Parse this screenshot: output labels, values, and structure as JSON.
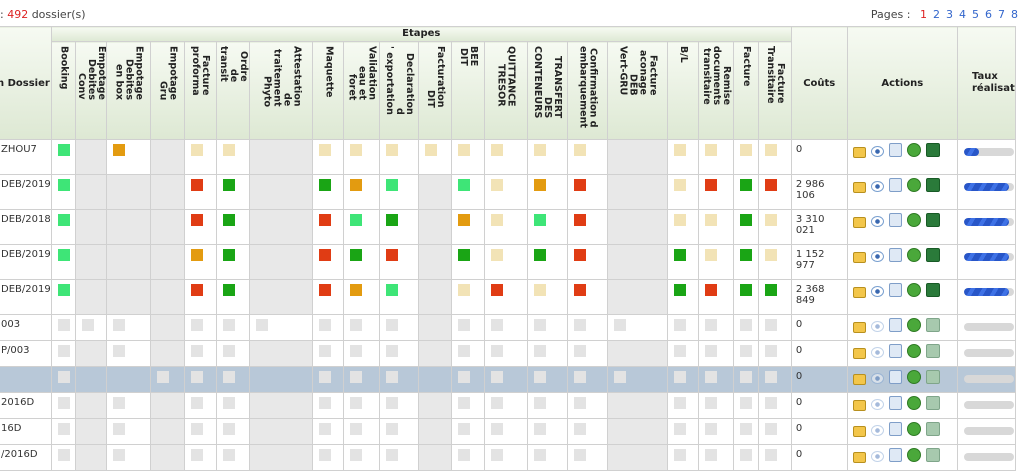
{
  "header": {
    "count_prefix": ": ",
    "count": "492",
    "count_suffix": " dossier(s)"
  },
  "pager": {
    "label": "Pages :",
    "pages": [
      "1",
      "2",
      "3",
      "4",
      "5",
      "6",
      "7",
      "8"
    ],
    "current": "1"
  },
  "table": {
    "col_dossier": "n Dossier",
    "group_etapes": "Etapes",
    "col_couts": "Coûts",
    "col_actions": "Actions",
    "col_taux": "Taux\nréalisat",
    "stages": [
      "Booking",
      "Empotage\nDebites\nConv",
      "Empotage\nDebites\nen box",
      "Empotage\nGru",
      "Facture\nproforma",
      "Ordre\nde\ntransit",
      "Attestation\nde\ntraitement\nPhyto",
      "Maquette",
      "Validation\neau et\nforet",
      "Declaration\nd\n' exportation",
      "Facturation\nDIT",
      "BEE\nDIT",
      "QUITTANCE\nTRESOR",
      "TRANSFERT\nDES\nCONTENEURS",
      "Confirmation d\nembarquement",
      "Facture\naconage\nDEB\nVert-GRU",
      "B/L",
      "Remise\ndocuments\ntransitaire",
      "Facture",
      "Facture\nTransitaire"
    ],
    "rows": [
      {
        "dossier": "ZHOU7",
        "cost": "0",
        "sel": false,
        "cells": [
          "lg",
          "x",
          "o",
          "x",
          "b",
          "b",
          "x",
          "b",
          "b",
          "b",
          "b",
          "b",
          "b",
          "b",
          "b",
          "x",
          "b",
          "b",
          "b",
          "b"
        ],
        "progress": 0.3,
        "dim": false
      },
      {
        "dossier": "DEB/2019",
        "cost": "2 986 106",
        "sel": false,
        "cells": [
          "lg",
          "x",
          "x",
          "x",
          "r",
          "dg",
          "x",
          "dg",
          "o",
          "lg",
          "x",
          "lg",
          "b",
          "o",
          "r",
          "x",
          "b",
          "r",
          "dg",
          "r"
        ],
        "progress": 0.9,
        "dim": false
      },
      {
        "dossier": "DEB/2018",
        "cost": "3 310 021",
        "sel": false,
        "cells": [
          "lg",
          "x",
          "x",
          "x",
          "r",
          "dg",
          "x",
          "r",
          "lg",
          "dg",
          "x",
          "o",
          "b",
          "lg",
          "r",
          "x",
          "b",
          "b",
          "dg",
          "b"
        ],
        "progress": 0.9,
        "dim": false
      },
      {
        "dossier": "DEB/2019",
        "cost": "1 152 977",
        "sel": false,
        "cells": [
          "lg",
          "x",
          "x",
          "x",
          "o",
          "dg",
          "x",
          "r",
          "dg",
          "r",
          "x",
          "dg",
          "b",
          "dg",
          "r",
          "x",
          "dg",
          "b",
          "dg",
          "b"
        ],
        "progress": 0.9,
        "dim": false
      },
      {
        "dossier": "DEB/2019",
        "cost": "2 368 849",
        "sel": false,
        "cells": [
          "lg",
          "x",
          "x",
          "x",
          "r",
          "dg",
          "x",
          "r",
          "o",
          "lg",
          "x",
          "b",
          "r",
          "b",
          "r",
          "x",
          "dg",
          "r",
          "dg",
          "dg"
        ],
        "progress": 0.9,
        "dim": false
      },
      {
        "dossier": "003",
        "cost": "0",
        "sel": false,
        "cells": [
          "gy",
          "gy",
          "gy",
          "x",
          "gy",
          "gy",
          "gy",
          "gy",
          "gy",
          "gy",
          "x",
          "gy",
          "gy",
          "gy",
          "gy",
          "gy",
          "gy",
          "gy",
          "gy",
          "gy"
        ],
        "progress": 0,
        "dim": true
      },
      {
        "dossier": "P/003",
        "cost": "0",
        "sel": false,
        "cells": [
          "gy",
          "x",
          "gy",
          "x",
          "gy",
          "gy",
          "x",
          "gy",
          "gy",
          "gy",
          "x",
          "gy",
          "gy",
          "gy",
          "gy",
          "x",
          "gy",
          "gy",
          "gy",
          "gy"
        ],
        "progress": 0,
        "dim": true
      },
      {
        "dossier": "",
        "cost": "0",
        "sel": true,
        "cells": [
          "gy",
          "x",
          "x",
          "gy",
          "gy",
          "gy",
          "x",
          "gy",
          "gy",
          "gy",
          "x",
          "gy",
          "gy",
          "gy",
          "gy",
          "gy",
          "gy",
          "gy",
          "gy",
          "gy"
        ],
        "progress": 0,
        "dim": true
      },
      {
        "dossier": "2016D",
        "cost": "0",
        "sel": false,
        "cells": [
          "gy",
          "x",
          "gy",
          "x",
          "gy",
          "gy",
          "x",
          "gy",
          "gy",
          "gy",
          "x",
          "gy",
          "gy",
          "gy",
          "gy",
          "x",
          "gy",
          "gy",
          "gy",
          "gy"
        ],
        "progress": 0,
        "dim": true
      },
      {
        "dossier": "16D",
        "cost": "0",
        "sel": false,
        "cells": [
          "gy",
          "x",
          "gy",
          "x",
          "gy",
          "gy",
          "x",
          "gy",
          "gy",
          "gy",
          "x",
          "gy",
          "gy",
          "gy",
          "gy",
          "x",
          "gy",
          "gy",
          "gy",
          "gy"
        ],
        "progress": 0,
        "dim": true
      },
      {
        "dossier": "/2016D",
        "cost": "0",
        "sel": false,
        "cells": [
          "gy",
          "x",
          "gy",
          "x",
          "gy",
          "gy",
          "x",
          "gy",
          "gy",
          "gy",
          "x",
          "gy",
          "gy",
          "gy",
          "gy",
          "x",
          "gy",
          "gy",
          "gy",
          "gy"
        ],
        "progress": 0,
        "dim": true
      }
    ]
  },
  "colors": {
    "light_green": "#3ee577",
    "dark_green": "#1aa515",
    "red": "#e03c14",
    "orange": "#e39b10",
    "beige": "#f2e3b6",
    "grey": "#e3e3e3",
    "selected_row": "#b8c8d8"
  },
  "icons": [
    "lock-icon",
    "eye-icon",
    "document-add-icon",
    "plugin-icon",
    "excel-icon"
  ]
}
